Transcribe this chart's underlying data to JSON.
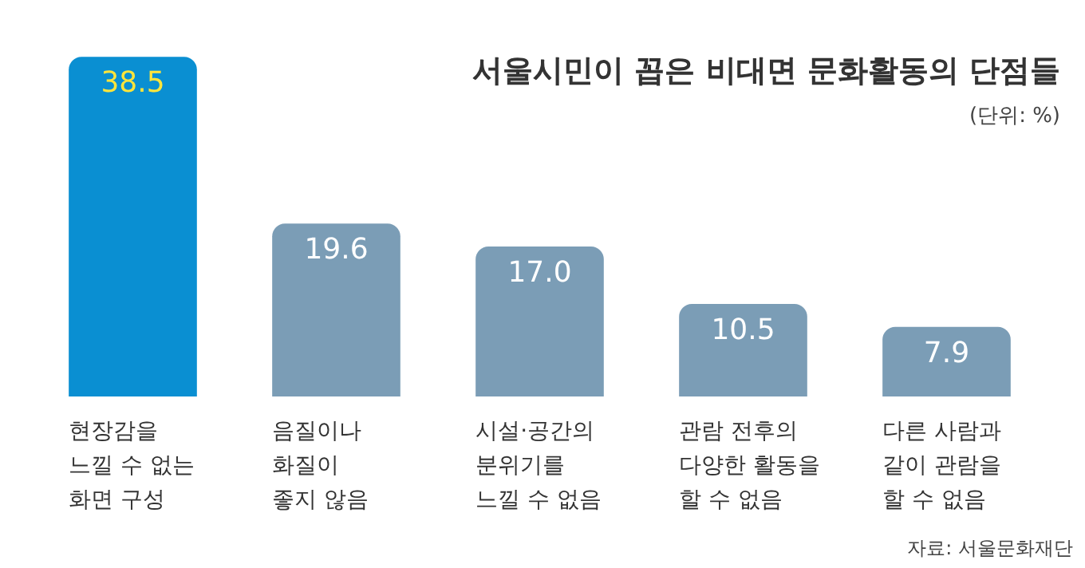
{
  "chart_data": {
    "type": "bar",
    "title": "서울시민이 꼽은 비대면 문화활동의 단점들",
    "subtitle": "(단위: %)",
    "categories": [
      "현장감을\n느낄 수 없는\n화면 구성",
      "음질이나\n화질이\n좋지 않음",
      "시설·공간의\n분위기를\n느낄 수 없음",
      "관람 전후의\n다양한 활동을\n할 수 없음",
      "다른 사람과\n같이 관람을\n할 수 없음"
    ],
    "values": [
      38.5,
      19.6,
      17.0,
      10.5,
      7.9
    ],
    "value_labels": [
      "38.5",
      "19.6",
      "17.0",
      "10.5",
      "7.9"
    ],
    "colors": [
      "#0a8fd2",
      "#7b9db6",
      "#7b9db6",
      "#7b9db6",
      "#7b9db6"
    ],
    "annotations": [
      "자료: 서울문화재단"
    ]
  }
}
